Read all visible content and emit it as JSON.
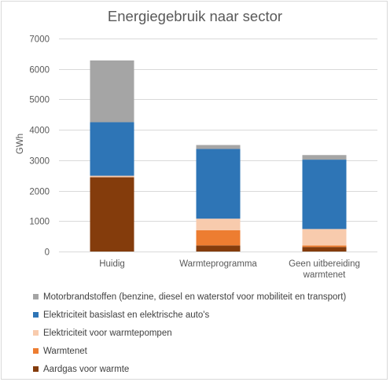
{
  "chart_data": {
    "type": "bar",
    "stacked": true,
    "title": "Energiegebruik naar sector",
    "xlabel": "",
    "ylabel": "GWh",
    "ylim": [
      0,
      7000
    ],
    "yticks": [
      0,
      1000,
      2000,
      3000,
      4000,
      5000,
      6000,
      7000
    ],
    "grid": true,
    "legend_position": "bottom",
    "categories": [
      [
        "Huidig"
      ],
      [
        "Warmteprogramma"
      ],
      [
        "Geen uitbereiding",
        "warmtenet"
      ]
    ],
    "series": [
      {
        "name": "Aardgas voor warmte",
        "color": "#843c0c",
        "values": [
          2440,
          200,
          150
        ]
      },
      {
        "name": "Warmtenet",
        "color": "#ed7d31",
        "values": [
          0,
          500,
          50
        ]
      },
      {
        "name": "Elektriciteit voor warmtepompen",
        "color": "#f8cbad",
        "values": [
          50,
          380,
          540
        ]
      },
      {
        "name": "Elektriciteit basislast en elektrische auto's",
        "color": "#2e75b6",
        "values": [
          1760,
          2290,
          2280
        ]
      },
      {
        "name": "Motorbrandstoffen (benzine, diesel en waterstof voor mobiliteit en transport)",
        "color": "#a5a5a5",
        "values": [
          2030,
          130,
          150
        ]
      }
    ],
    "legend_order": [
      4,
      3,
      2,
      1,
      0
    ]
  }
}
